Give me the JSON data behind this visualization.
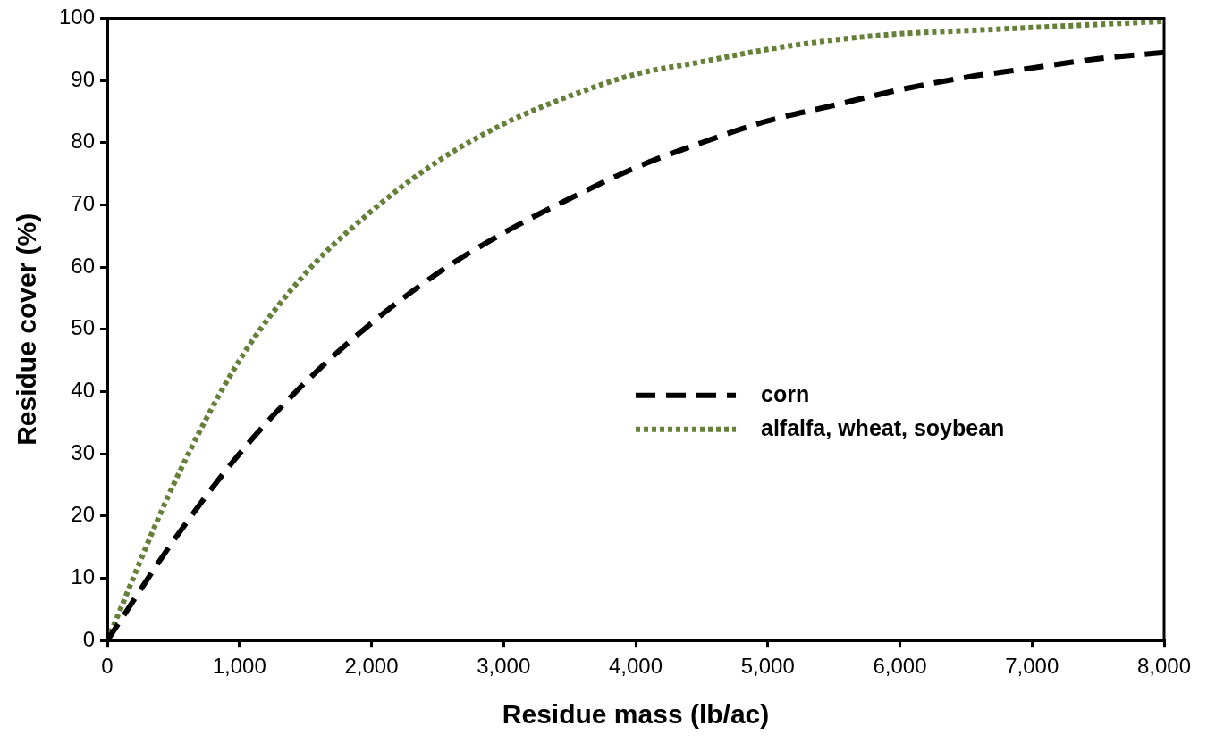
{
  "chart_data": {
    "type": "line",
    "xlabel": "Residue mass (lb/ac)",
    "ylabel": "Residue cover (%)",
    "xlim": [
      0,
      8000
    ],
    "ylim": [
      0,
      100
    ],
    "xticks": [
      0,
      {
        "value": 1000,
        "label": "1,000"
      },
      {
        "value": 2000,
        "label": "2,000"
      },
      {
        "value": 3000,
        "label": "3,000"
      },
      {
        "value": 4000,
        "label": "4,000"
      },
      {
        "value": 5000,
        "label": "5,000"
      },
      {
        "value": 6000,
        "label": "6,000"
      },
      {
        "value": 7000,
        "label": "7,000"
      },
      {
        "value": 8000,
        "label": "8,000"
      }
    ],
    "yticks": [
      0,
      10,
      20,
      30,
      40,
      50,
      60,
      70,
      80,
      90,
      100
    ],
    "x": [
      0,
      500,
      1000,
      1500,
      2000,
      2500,
      3000,
      3500,
      4000,
      4500,
      5000,
      5500,
      6000,
      6500,
      7000,
      7500,
      8000
    ],
    "series": [
      {
        "name": "corn",
        "color": "#000000",
        "line_style": "dashed",
        "values": [
          0,
          16,
          30,
          41.5,
          51,
          59,
          65.5,
          71,
          76,
          80,
          83.5,
          86,
          88.5,
          90.5,
          92,
          93.5,
          94.5
        ]
      },
      {
        "name": "alfalfa, wheat, soybean",
        "color": "#66803a",
        "line_style": "dotted",
        "values": [
          0,
          25,
          45,
          59,
          69,
          77,
          83,
          87.5,
          91,
          93,
          95,
          96.5,
          97.5,
          98,
          98.5,
          99,
          99.5
        ]
      }
    ],
    "grid": false,
    "legend": "right",
    "marker": "none"
  }
}
